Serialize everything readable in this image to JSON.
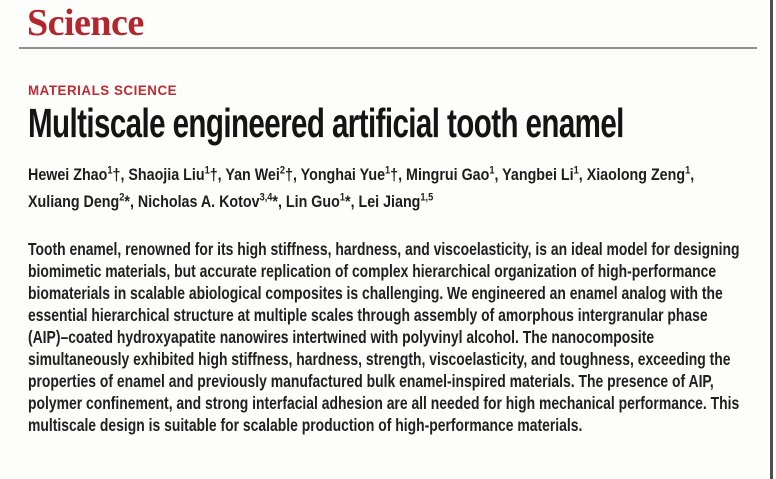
{
  "colors": {
    "logo-red": "#b5262c",
    "section-red": "#c22a30",
    "text-black": "#1b1b1b",
    "rule-gray": "#8f8f8f",
    "edge-gray": "#4e4e4e"
  },
  "masthead": {
    "journal": "Science"
  },
  "article": {
    "section": "MATERIALS SCIENCE",
    "title": "Multiscale engineered artificial tooth enamel",
    "authors": [
      {
        "name": "Hewei Zhao",
        "sup": "1",
        "mark": "†",
        "sep": ", "
      },
      {
        "name": "Shaojia Liu",
        "sup": "1",
        "mark": "†",
        "sep": ", "
      },
      {
        "name": "Yan Wei",
        "sup": "2",
        "mark": "†",
        "sep": ", "
      },
      {
        "name": "Yonghai Yue",
        "sup": "1",
        "mark": "†",
        "sep": ", "
      },
      {
        "name": "Mingrui Gao",
        "sup": "1",
        "mark": "",
        "sep": ", "
      },
      {
        "name": "Yangbei Li",
        "sup": "1",
        "mark": "",
        "sep": ", "
      },
      {
        "name": "Xiaolong Zeng",
        "sup": "1",
        "mark": "",
        "sep": ","
      },
      {
        "name": "Xuliang Deng",
        "sup": "2",
        "mark": "*",
        "sep": ", "
      },
      {
        "name": "Nicholas A. Kotov",
        "sup": "3,4",
        "mark": "*",
        "sep": ", "
      },
      {
        "name": "Lin Guo",
        "sup": "1",
        "mark": "*",
        "sep": ", "
      },
      {
        "name": "Lei Jiang",
        "sup": "1,5",
        "mark": "",
        "sep": ""
      }
    ],
    "abstract": "Tooth enamel, renowned for its high stiffness, hardness, and viscoelasticity, is an ideal model for designing biomimetic materials, but accurate replication of complex hierarchical organization of high-performance biomaterials in scalable abiological composites is challenging. We engineered an enamel analog with the essential hierarchical structure at multiple scales through assembly of amorphous intergranular phase (AIP)–coated hydroxyapatite nanowires intertwined with polyvinyl alcohol. The nanocomposite simultaneously exhibited high stiffness, hardness, strength, viscoelasticity, and toughness, exceeding the properties of enamel and previously manufactured bulk enamel-inspired materials. The presence of AIP, polymer confinement, and strong interfacial adhesion are all needed for high mechanical performance. This multiscale design is suitable for scalable production of high-performance materials."
  }
}
